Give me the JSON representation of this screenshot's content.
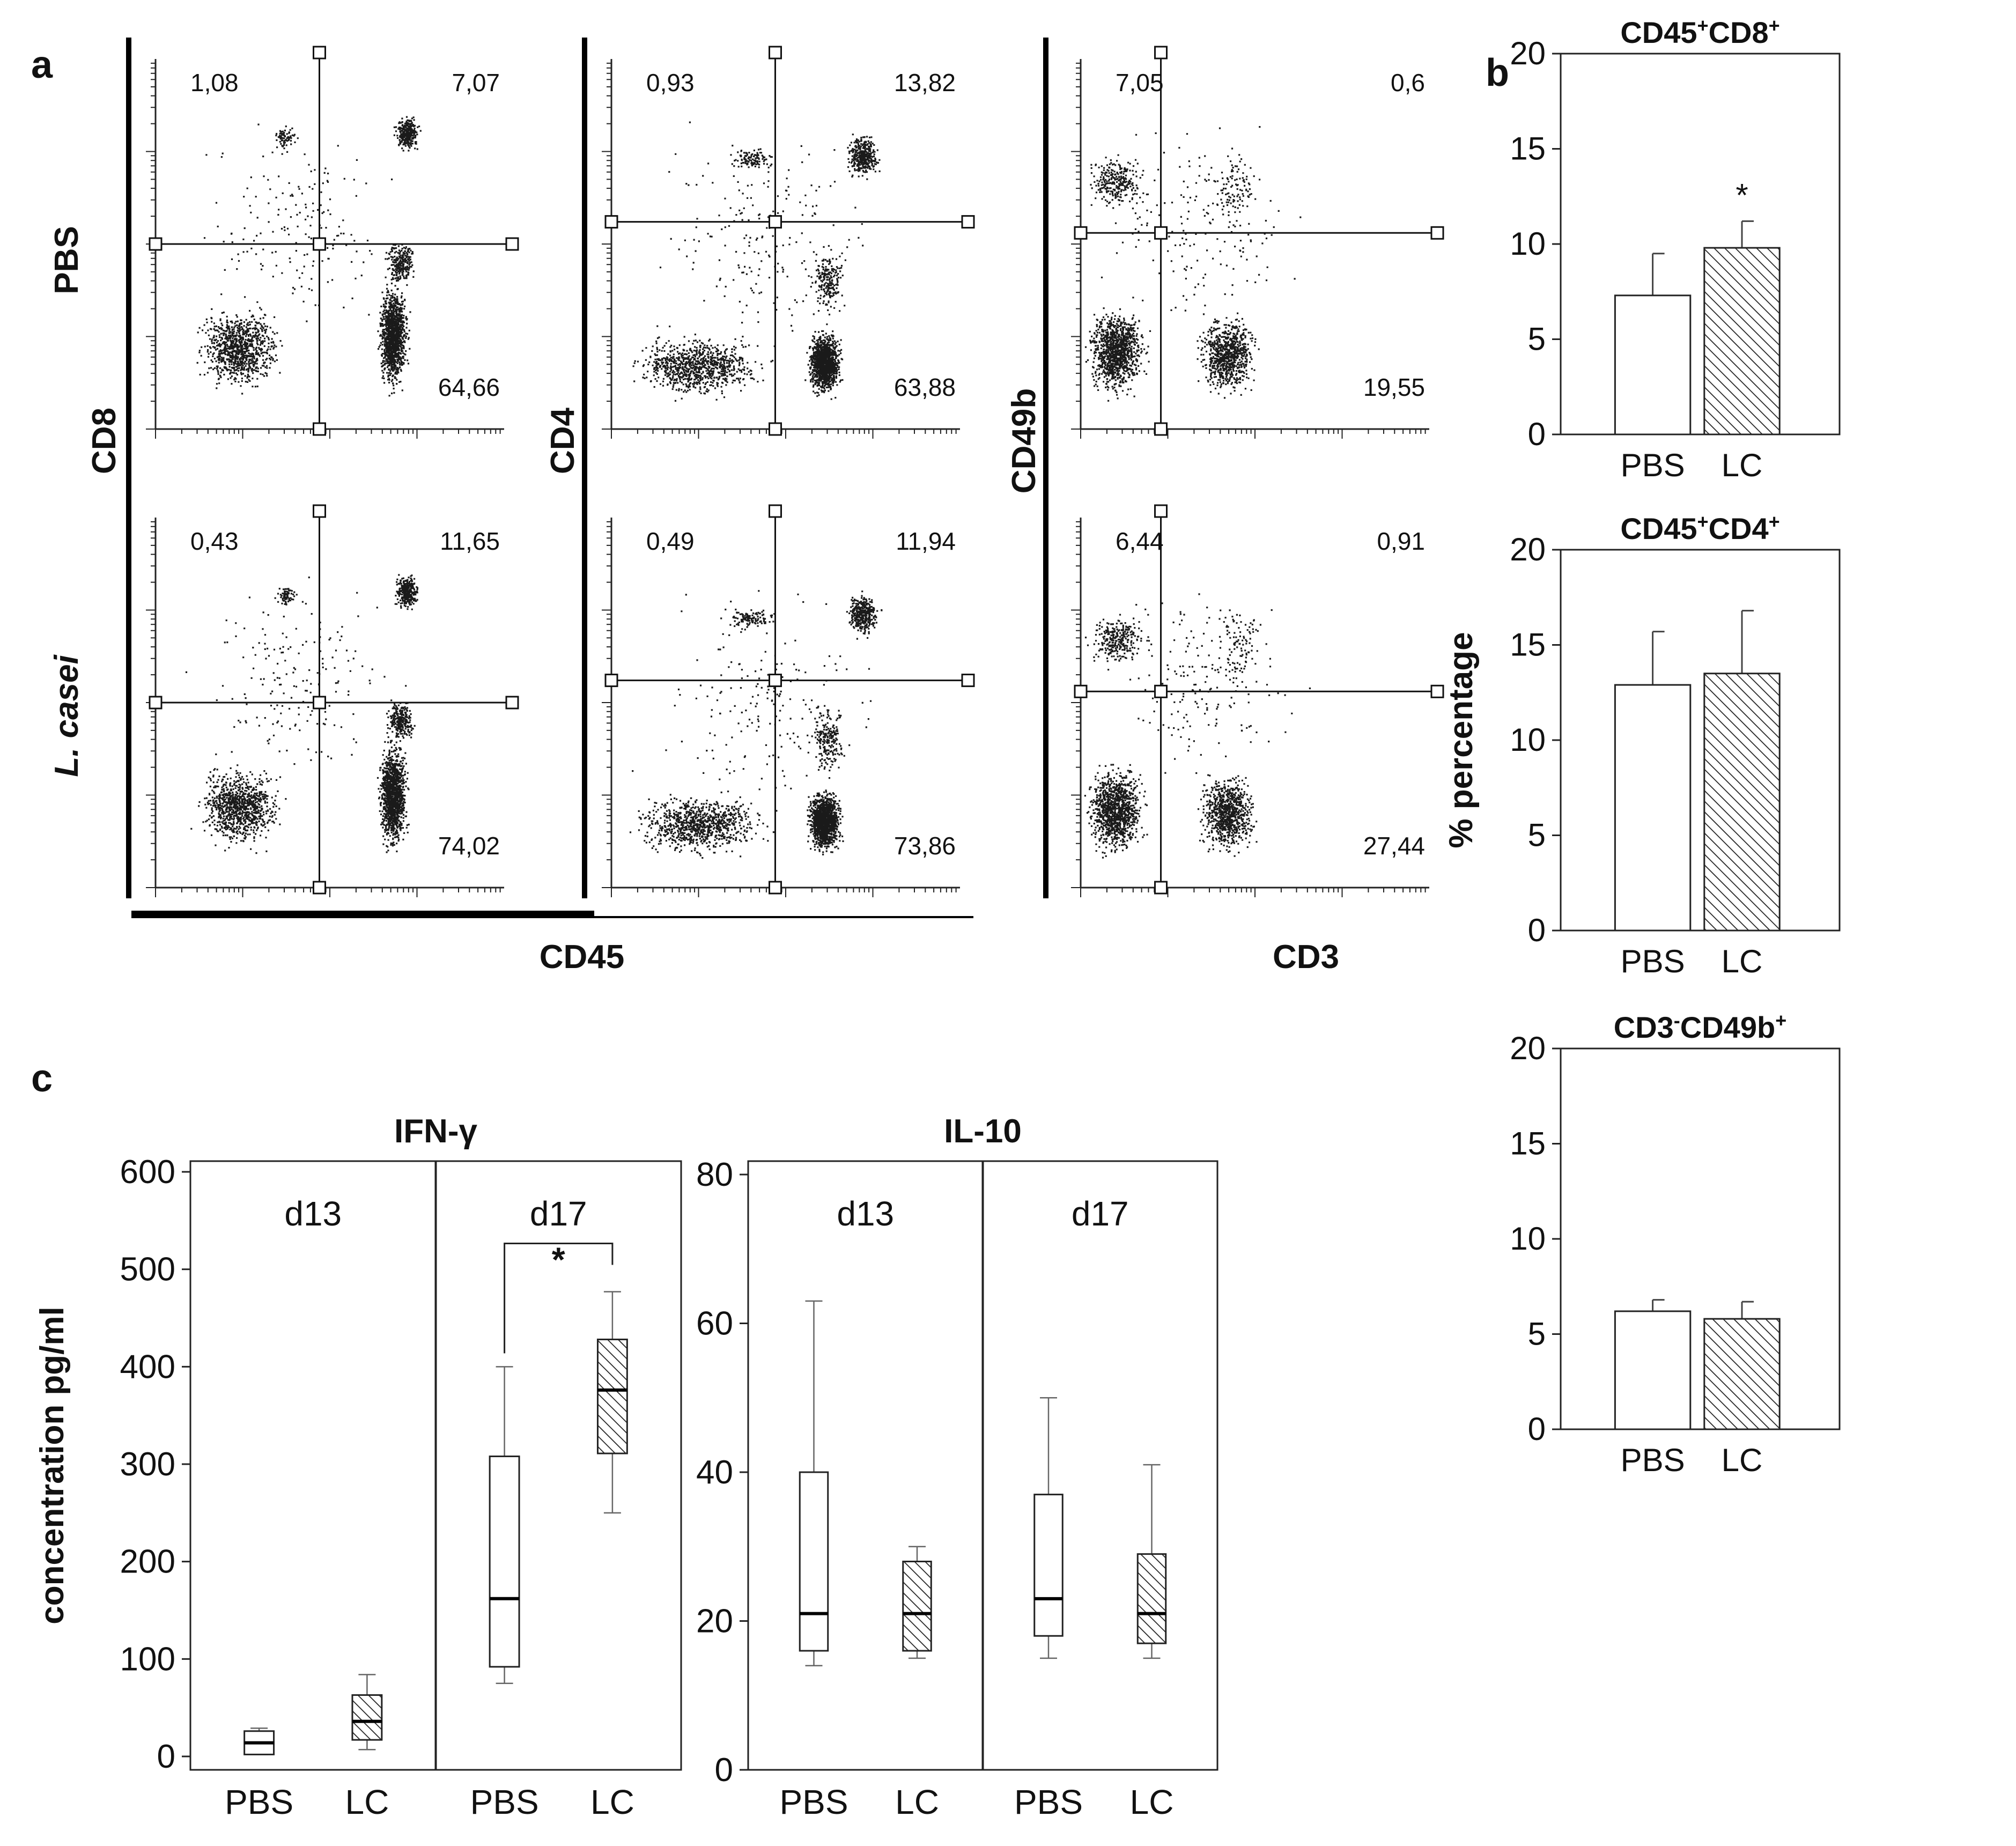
{
  "panel_labels": {
    "a": "a",
    "b": "b",
    "c": "c"
  },
  "panel_a": {
    "row_labels": [
      "PBS",
      "L. casei"
    ],
    "y_markers": [
      "CD8",
      "CD4",
      "CD49b"
    ],
    "x_markers": [
      "CD45",
      "CD3"
    ],
    "plots": [
      {
        "row": 0,
        "col": 0,
        "y_marker": "CD8",
        "x_marker": "CD45",
        "quadrants": {
          "ul": "1,08",
          "ur": "7,07",
          "lr": "64,66"
        }
      },
      {
        "row": 0,
        "col": 1,
        "y_marker": "CD4",
        "x_marker": "CD45",
        "quadrants": {
          "ul": "0,93",
          "ur": "13,82",
          "lr": "63,88"
        }
      },
      {
        "row": 0,
        "col": 2,
        "y_marker": "CD49b",
        "x_marker": "CD3",
        "quadrants": {
          "ul": "7,05",
          "ur": "0,6",
          "lr": "19,55"
        }
      },
      {
        "row": 1,
        "col": 0,
        "y_marker": "CD8",
        "x_marker": "CD45",
        "quadrants": {
          "ul": "0,43",
          "ur": "11,65",
          "lr": "74,02"
        }
      },
      {
        "row": 1,
        "col": 1,
        "y_marker": "CD4",
        "x_marker": "CD45",
        "quadrants": {
          "ul": "0,49",
          "ur": "11,94",
          "lr": "73,86"
        }
      },
      {
        "row": 1,
        "col": 2,
        "y_marker": "CD49b",
        "x_marker": "CD3",
        "quadrants": {
          "ul": "6,44",
          "ur": "0,91",
          "lr": "27,44"
        }
      }
    ]
  },
  "chart_data": [
    {
      "type": "bar",
      "panel": "b",
      "title": "CD45+CD8+",
      "title_parts": [
        [
          "CD45",
          ""
        ],
        [
          "+",
          "sup"
        ],
        [
          "CD8",
          ""
        ],
        [
          "+",
          "sup"
        ]
      ],
      "categories": [
        "PBS",
        "LC"
      ],
      "values": [
        7.3,
        9.8
      ],
      "errors": [
        2.2,
        1.4
      ],
      "significance": [
        "",
        "*"
      ],
      "ylim": [
        0,
        20
      ],
      "yticks": [
        "0",
        "5",
        "10",
        "15",
        "20"
      ],
      "ylabel": ""
    },
    {
      "type": "bar",
      "panel": "b",
      "title": "CD45+CD4+",
      "title_parts": [
        [
          "CD45",
          ""
        ],
        [
          "+",
          "sup"
        ],
        [
          "CD4",
          ""
        ],
        [
          "+",
          "sup"
        ]
      ],
      "categories": [
        "PBS",
        "LC"
      ],
      "values": [
        12.9,
        13.5
      ],
      "errors": [
        2.8,
        3.3
      ],
      "significance": [
        "",
        ""
      ],
      "ylim": [
        0,
        20
      ],
      "yticks": [
        "0",
        "5",
        "10",
        "15",
        "20"
      ],
      "ylabel": "% percentage"
    },
    {
      "type": "bar",
      "panel": "b",
      "title": "CD3-CD49b+",
      "title_parts": [
        [
          "CD3",
          ""
        ],
        [
          "-",
          "sup"
        ],
        [
          "CD49b",
          ""
        ],
        [
          "+",
          "sup"
        ]
      ],
      "categories": [
        "PBS",
        "LC"
      ],
      "values": [
        6.2,
        5.8
      ],
      "errors": [
        0.6,
        0.9
      ],
      "significance": [
        "",
        ""
      ],
      "ylim": [
        0,
        20
      ],
      "yticks": [
        "0",
        "5",
        "10",
        "15",
        "20"
      ],
      "ylabel": ""
    },
    {
      "type": "box",
      "panel": "c",
      "title": "IFN-γ",
      "ylabel": "concentration pg/ml",
      "ylim": [
        0,
        600
      ],
      "yticks": [
        "0",
        "100",
        "200",
        "300",
        "400",
        "500",
        "600"
      ],
      "groups": [
        {
          "label": "d13",
          "boxes": [
            {
              "category": "PBS",
              "min": 2,
              "q1": 2,
              "median": 14,
              "q3": 26,
              "max": 29,
              "hatched": false
            },
            {
              "category": "LC",
              "min": 7,
              "q1": 17,
              "median": 36,
              "q3": 63,
              "max": 84,
              "hatched": true
            }
          ]
        },
        {
          "label": "d17",
          "significance": "*",
          "boxes": [
            {
              "category": "PBS",
              "min": 75,
              "q1": 92,
              "median": 162,
              "q3": 308,
              "max": 400,
              "hatched": false
            },
            {
              "category": "LC",
              "min": 250,
              "q1": 311,
              "median": 376,
              "q3": 428,
              "max": 477,
              "hatched": true
            }
          ]
        }
      ]
    },
    {
      "type": "box",
      "panel": "c",
      "title": "IL-10",
      "ylabel": "",
      "ylim": [
        0,
        80
      ],
      "yticks": [
        "0",
        "20",
        "40",
        "60",
        "80"
      ],
      "groups": [
        {
          "label": "d13",
          "boxes": [
            {
              "category": "PBS",
              "min": 14,
              "q1": 16,
              "median": 21,
              "q3": 40,
              "max": 63,
              "hatched": false
            },
            {
              "category": "LC",
              "min": 15,
              "q1": 16,
              "median": 21,
              "q3": 28,
              "max": 30,
              "hatched": true
            }
          ]
        },
        {
          "label": "d17",
          "boxes": [
            {
              "category": "PBS",
              "min": 15,
              "q1": 18,
              "median": 23,
              "q3": 37,
              "max": 50,
              "hatched": false
            },
            {
              "category": "LC",
              "min": 15,
              "q1": 17,
              "median": 21,
              "q3": 29,
              "max": 41,
              "hatched": true
            }
          ]
        }
      ]
    }
  ]
}
